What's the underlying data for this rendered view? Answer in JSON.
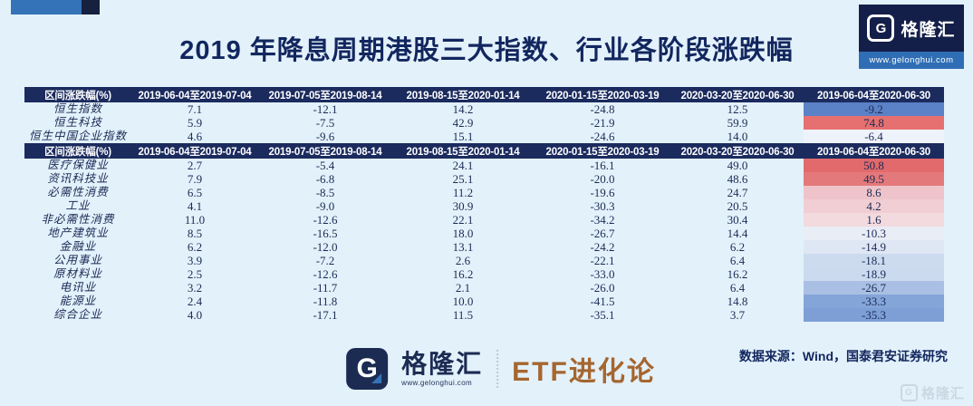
{
  "title": "2019 年降息周期港股三大指数、行业各阶段涨跌幅",
  "brand": {
    "g_letter": "G",
    "name": "格隆汇",
    "site": "www.gelonghui.com",
    "partner": "ETF进化论",
    "watermark_name": "格隆汇"
  },
  "footer": {
    "source_note": "数据来源：Wind，国泰君安证券研究"
  },
  "colors": {
    "page_bg": "#e3f1fb",
    "header_bg": "#1b2b5e",
    "title_navy": "#12265e",
    "accent_blue": "#3473b7",
    "accent_navy": "#16203f",
    "site_strip_blue": "#2f6eb5",
    "partner_bronze": "#a5662f",
    "highlight_red": "#e2696c",
    "highlight_blue": "#5b81c6"
  },
  "chart_data": {
    "type": "table",
    "title": "2019 年降息周期港股三大指数、行业各阶段涨跌幅",
    "columns": [
      "区间涨跌幅(%)",
      "2019-06-04至2019-07-04",
      "2019-07-05至2019-08-14",
      "2019-08-15至2020-01-14",
      "2020-01-15至2020-03-19",
      "2020-03-20至2020-06-30",
      "2019-06-04至2020-06-30"
    ],
    "sections": [
      {
        "name": "indices",
        "rows": [
          {
            "label": "恒生指数",
            "values": [
              7.1,
              -12.1,
              14.2,
              -24.8,
              12.5,
              -9.2
            ],
            "highlight": "#5b81c6"
          },
          {
            "label": "恒生科技",
            "values": [
              5.9,
              -7.5,
              42.9,
              -21.9,
              59.9,
              74.8
            ],
            "highlight": "#e6706f"
          },
          {
            "label": "恒生中国企业指数",
            "values": [
              4.6,
              -9.6,
              15.1,
              -24.6,
              14.0,
              -6.4
            ],
            "highlight": "#eef3fb"
          }
        ]
      },
      {
        "name": "industries",
        "rows": [
          {
            "label": "医疗保健业",
            "values": [
              2.7,
              -5.4,
              24.1,
              -16.1,
              49.0,
              50.8
            ],
            "highlight": "#e2696c"
          },
          {
            "label": "资讯科技业",
            "values": [
              7.9,
              -6.8,
              25.1,
              -20.0,
              48.6,
              49.5
            ],
            "highlight": "#e4797b"
          },
          {
            "label": "必需性消费",
            "values": [
              6.5,
              -8.5,
              11.2,
              -19.6,
              24.7,
              8.6
            ],
            "highlight": "#eec4ca"
          },
          {
            "label": "工业",
            "values": [
              4.1,
              -9.0,
              30.9,
              -30.3,
              20.5,
              4.2
            ],
            "highlight": "#f0ced4"
          },
          {
            "label": "非必需性消费",
            "values": [
              11.0,
              -12.6,
              22.1,
              -34.2,
              30.4,
              1.6
            ],
            "highlight": "#f2dade"
          },
          {
            "label": "地产建筑业",
            "values": [
              8.5,
              -16.5,
              18.0,
              -26.7,
              14.4,
              -10.3
            ],
            "highlight": "#e9edf6"
          },
          {
            "label": "金融业",
            "values": [
              6.2,
              -12.0,
              13.1,
              -24.2,
              6.2,
              -14.9
            ],
            "highlight": "#dfe7f4"
          },
          {
            "label": "公用事业",
            "values": [
              3.9,
              -7.2,
              2.6,
              -22.1,
              6.4,
              -18.1
            ],
            "highlight": "#cddbef"
          },
          {
            "label": "原材料业",
            "values": [
              2.5,
              -12.6,
              16.2,
              -33.0,
              16.2,
              -18.9
            ],
            "highlight": "#cbdaef"
          },
          {
            "label": "电讯业",
            "values": [
              3.2,
              -11.7,
              2.1,
              -26.0,
              6.4,
              -26.7
            ],
            "highlight": "#a9c0e4"
          },
          {
            "label": "能源业",
            "values": [
              2.4,
              -11.8,
              10.0,
              -41.5,
              14.8,
              -33.3
            ],
            "highlight": "#84a5d8"
          },
          {
            "label": "综合企业",
            "values": [
              4.0,
              -17.1,
              11.5,
              -35.1,
              3.7,
              -35.3
            ],
            "highlight": "#7e9fd6"
          }
        ]
      }
    ]
  }
}
